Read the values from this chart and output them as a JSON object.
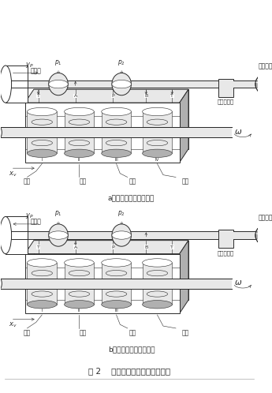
{
  "title_fig": "图 2    高频电液激振器工作原理图",
  "label_a": "a）液压缸活塞向右运动",
  "label_b": "b）液压缸活塞向左运动",
  "label_yiya": "液压缸",
  "label_jiazai": "加载对象",
  "label_zahe": "载荷传感器",
  "label_famen_a": "阀塞",
  "label_faxin_a": "阀芯",
  "label_goucao_a": "沟槽",
  "label_chuangkou_a": "窗口",
  "label_famen_b": "阀塞",
  "label_faxin_b": "阀芯",
  "label_chuangkou_b": "窗口",
  "label_goucao_b": "沟槽",
  "bg_color": "#ffffff",
  "line_color": "#2a2a2a",
  "gray_fill": "#c8c8c8",
  "light_fill": "#e8e8e8",
  "dark_fill": "#909090",
  "mid_gray": "#b0b0b0"
}
